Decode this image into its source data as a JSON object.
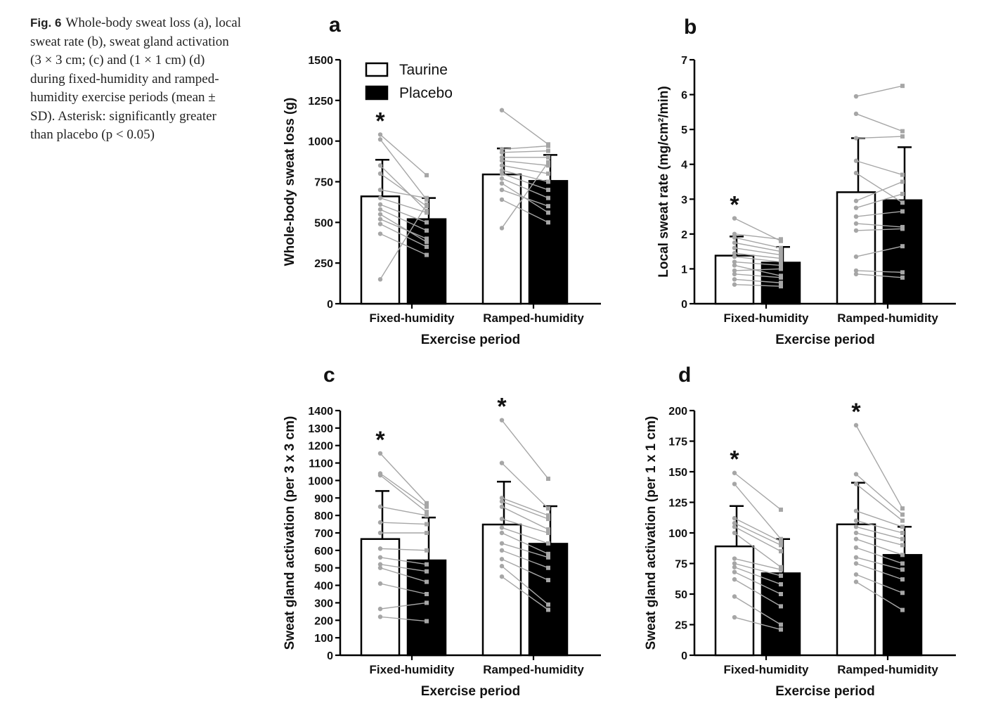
{
  "caption": {
    "label": "Fig. 6",
    "text": "Whole-body sweat loss (a), local sweat rate (b), sweat gland activation (3 × 3 cm; (c) and (1 × 1 cm) (d) during fixed-humidity and ramped-humidity exercise periods (mean ± SD). Asterisk: significantly greater than placebo (p < 0.05)"
  },
  "colors": {
    "taurine": "#ffffff",
    "placebo": "#000000",
    "individual_lines": "#a6a6a6",
    "individual_points": "#a6a6a6",
    "axis": "#000000"
  },
  "legend": {
    "entries": [
      {
        "label": "Taurine",
        "color": "#ffffff"
      },
      {
        "label": "Placebo",
        "color": "#000000"
      }
    ],
    "placement": "top-left of panel a"
  },
  "chart_data": [
    {
      "panel": "a",
      "type": "bar",
      "categories": [
        "Fixed-humidity",
        "Ramped-humidity"
      ],
      "xlabel": "Exercise period",
      "ylabel": "Whole-body sweat loss (g)",
      "ylim": [
        0,
        1500
      ],
      "yticks": [
        0,
        250,
        500,
        750,
        1000,
        1250,
        1500
      ],
      "series": [
        {
          "name": "Taurine",
          "values": [
            660,
            795
          ],
          "sd": [
            225,
            160
          ]
        },
        {
          "name": "Placebo",
          "values": [
            520,
            755
          ],
          "sd": [
            130,
            160
          ]
        }
      ],
      "asterisk": [
        true,
        false
      ],
      "individual": [
        {
          "taurine": [
            150,
            430,
            490,
            520,
            550,
            580,
            610,
            650,
            700,
            800,
            850,
            1010,
            1040
          ],
          "placebo": [
            610,
            300,
            350,
            400,
            380,
            450,
            500,
            560,
            650,
            600,
            570,
            640,
            790
          ]
        },
        {
          "taurine": [
            465,
            640,
            700,
            740,
            770,
            800,
            820,
            850,
            880,
            900,
            930,
            950,
            1190
          ],
          "placebo": [
            870,
            500,
            600,
            560,
            650,
            700,
            750,
            800,
            850,
            900,
            940,
            970,
            980
          ]
        }
      ]
    },
    {
      "panel": "b",
      "type": "bar",
      "categories": [
        "Fixed-humidity",
        "Ramped-humidity"
      ],
      "xlabel": "Exercise period",
      "ylabel": "Local sweat rate (mg/cm²/min)",
      "ylim": [
        0,
        7
      ],
      "yticks": [
        0,
        1,
        2,
        3,
        4,
        5,
        6,
        7
      ],
      "series": [
        {
          "name": "Taurine",
          "values": [
            1.38,
            3.2
          ],
          "sd": [
            0.55,
            1.55
          ]
        },
        {
          "name": "Placebo",
          "values": [
            1.18,
            2.97
          ],
          "sd": [
            0.45,
            1.52
          ]
        }
      ],
      "asterisk": [
        true,
        false
      ],
      "individual": [
        {
          "taurine": [
            0.55,
            0.7,
            0.85,
            0.95,
            1.1,
            1.2,
            1.35,
            1.45,
            1.6,
            1.75,
            1.9,
            2.0,
            2.45
          ],
          "placebo": [
            0.5,
            0.6,
            0.75,
            1.0,
            0.8,
            1.1,
            1.2,
            1.3,
            1.4,
            1.5,
            1.6,
            1.85,
            1.8
          ]
        },
        {
          "taurine": [
            0.85,
            0.95,
            1.35,
            2.1,
            2.3,
            2.5,
            2.75,
            2.95,
            3.75,
            4.1,
            4.75,
            5.45,
            5.95
          ],
          "placebo": [
            0.75,
            0.9,
            1.65,
            2.15,
            2.2,
            2.65,
            3.15,
            3.5,
            2.9,
            3.7,
            4.8,
            4.95,
            6.25
          ]
        }
      ]
    },
    {
      "panel": "c",
      "type": "bar",
      "categories": [
        "Fixed-humidity",
        "Ramped-humidity"
      ],
      "xlabel": "Exercise period",
      "ylabel": "Sweat gland activation (per 3 x 3 cm)",
      "ylim": [
        0,
        1400
      ],
      "yticks": [
        0,
        100,
        200,
        300,
        400,
        500,
        600,
        700,
        800,
        900,
        1000,
        1100,
        1200,
        1300,
        1400
      ],
      "series": [
        {
          "name": "Taurine",
          "values": [
            665,
            748
          ],
          "sd": [
            275,
            245
          ]
        },
        {
          "name": "Placebo",
          "values": [
            543,
            638
          ],
          "sd": [
            245,
            215
          ]
        }
      ],
      "asterisk": [
        true,
        true
      ],
      "individual": [
        {
          "taurine": [
            220,
            265,
            410,
            500,
            520,
            560,
            610,
            700,
            760,
            850,
            1030,
            1040,
            1155
          ],
          "placebo": [
            195,
            300,
            350,
            420,
            480,
            520,
            600,
            700,
            750,
            800,
            820,
            850,
            870
          ]
        },
        {
          "taurine": [
            450,
            510,
            550,
            600,
            640,
            700,
            730,
            780,
            850,
            880,
            900,
            1100,
            1345
          ],
          "placebo": [
            260,
            290,
            430,
            500,
            560,
            580,
            640,
            700,
            720,
            780,
            800,
            840,
            1010
          ]
        }
      ]
    },
    {
      "panel": "d",
      "type": "bar",
      "categories": [
        "Fixed-humidity",
        "Ramped-humidity"
      ],
      "xlabel": "Exercise period",
      "ylabel": "Sweat gland activation (per 1 x 1 cm)",
      "ylim": [
        0,
        200
      ],
      "yticks": [
        0,
        25,
        50,
        75,
        100,
        125,
        150,
        175,
        200
      ],
      "series": [
        {
          "name": "Taurine",
          "values": [
            89,
            107
          ],
          "sd": [
            33,
            34
          ]
        },
        {
          "name": "Placebo",
          "values": [
            67,
            82
          ],
          "sd": [
            28,
            23
          ]
        }
      ],
      "asterisk": [
        true,
        true
      ],
      "individual": [
        {
          "taurine": [
            31,
            48,
            62,
            68,
            72,
            75,
            79,
            100,
            105,
            108,
            112,
            140,
            149
          ],
          "placebo": [
            21,
            25,
            40,
            50,
            58,
            65,
            70,
            72,
            85,
            90,
            93,
            95,
            119
          ]
        },
        {
          "taurine": [
            60,
            66,
            75,
            80,
            88,
            95,
            100,
            105,
            110,
            118,
            140,
            148,
            188
          ],
          "placebo": [
            37,
            51,
            62,
            70,
            75,
            82,
            90,
            95,
            100,
            105,
            110,
            115,
            120
          ]
        }
      ]
    }
  ],
  "panel_letters": [
    "a",
    "b",
    "c",
    "d"
  ]
}
